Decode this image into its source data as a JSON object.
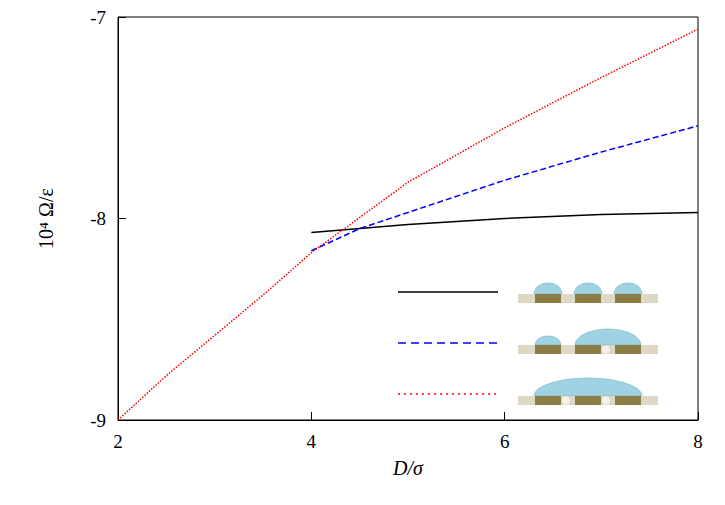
{
  "chart_data": {
    "type": "line",
    "x_label": "D/σ",
    "y_label": "10⁴ Ω/ε",
    "xlim": [
      2,
      8
    ],
    "ylim": [
      -9,
      -7
    ],
    "xticks": [
      2,
      4,
      6,
      8
    ],
    "yticks": [
      -9,
      -8,
      -7
    ],
    "grid": false,
    "legend": "lower right",
    "series": [
      {
        "color": "#000000",
        "line_style": "solid",
        "x": [
          4,
          4.5,
          5,
          6,
          7,
          8
        ],
        "values": [
          -8.07,
          -8.05,
          -8.03,
          -8.0,
          -7.98,
          -7.97
        ]
      },
      {
        "color": "#0000ff",
        "line_style": "dashed",
        "x": [
          4,
          4.5,
          5,
          6,
          7,
          8
        ],
        "values": [
          -8.16,
          -8.05,
          -7.97,
          -7.81,
          -7.67,
          -7.54
        ]
      },
      {
        "color": "#ff0000",
        "line_style": "dotted",
        "x": [
          2,
          2.5,
          3,
          3.5,
          4,
          5,
          6,
          7,
          8
        ],
        "values": [
          -9.0,
          -8.78,
          -8.58,
          -8.38,
          -8.17,
          -7.82,
          -7.55,
          -7.3,
          -7.06
        ]
      }
    ]
  }
}
